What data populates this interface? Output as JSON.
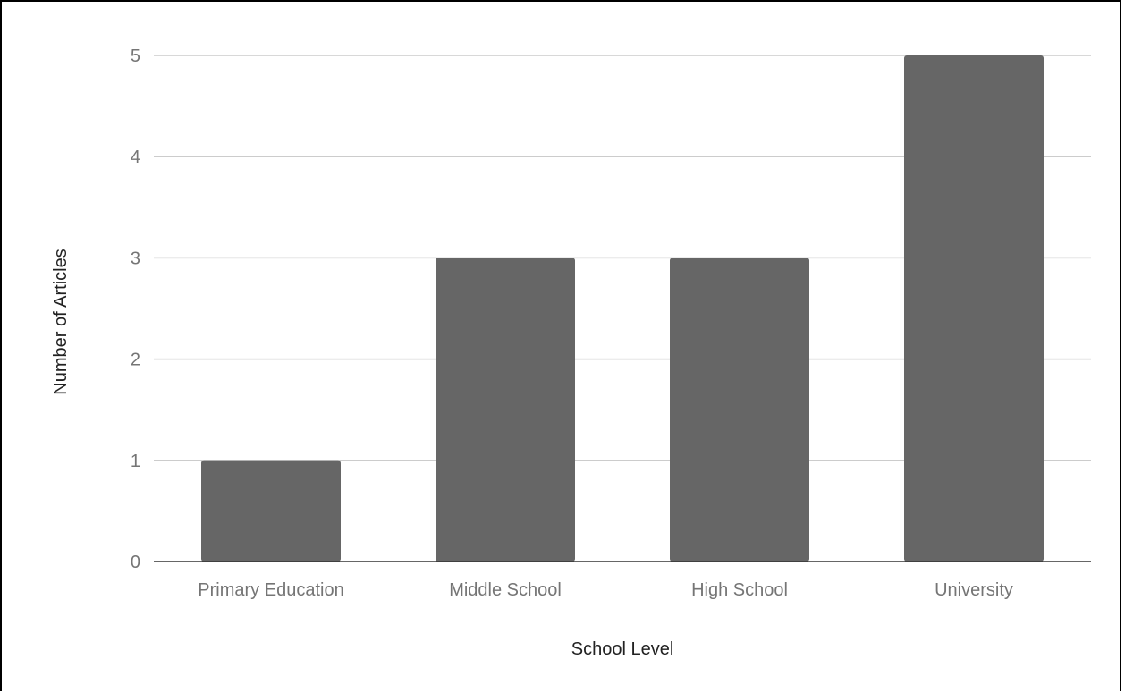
{
  "chart_data": {
    "type": "bar",
    "title": "",
    "categories": [
      "Primary Education",
      "Middle School",
      "High School",
      "University"
    ],
    "values": [
      1,
      3,
      3,
      5
    ],
    "xlabel": "School Level",
    "ylabel": "Number of Articles",
    "ylim": [
      0,
      5
    ],
    "yticks": [
      "0",
      "1",
      "2",
      "3",
      "4",
      "5"
    ],
    "grid": true,
    "legend": "none",
    "colors": {
      "bar": "#666666",
      "grid": "#cccccc",
      "baseline": "#333333",
      "tick_text": "#757575",
      "axis_title_text": "#222222"
    }
  }
}
